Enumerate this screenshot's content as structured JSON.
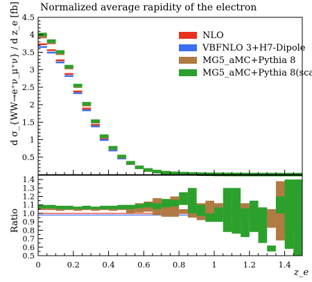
{
  "chart_data": {
    "title": "Normalized average rapidity of the electron",
    "x_label": "z_e",
    "y_label": "d σ_{WW→e⁺ν_μ⁺ν} / d z_e [fb]",
    "ratio_label": "Ratio",
    "x_ticks": [
      "0",
      "0.2",
      "0.4",
      "0.6",
      "0.8",
      "1",
      "1.2",
      "1.4"
    ],
    "main_y_ticks": [
      "0.5",
      "1",
      "1.5",
      "2",
      "2.5",
      "3",
      "3.5",
      "4",
      "4.5"
    ],
    "ratio_y_ticks": [
      "0.5",
      "0.6",
      "0.7",
      "0.8",
      "0.9",
      "1.0",
      "1.1",
      "1.2",
      "1.3",
      "1.4"
    ],
    "x_range": [
      0,
      1.5
    ],
    "main_y_range": [
      0,
      4.5
    ],
    "ratio_y_range": [
      0.5,
      1.45
    ],
    "bin_width": 0.05,
    "legend_position": "top-right",
    "series": [
      {
        "name": "NLO",
        "color": "#e8321e",
        "values": [
          3.73,
          3.56,
          3.27,
          2.88,
          2.38,
          1.89,
          1.42,
          1.02,
          0.71,
          0.47,
          0.31,
          0.19,
          0.12,
          0.08,
          0.05,
          0.035,
          0.025,
          0.018,
          0.012,
          0.008,
          0.006,
          0.004,
          0.003,
          0.002,
          0.0015,
          0.001,
          0.0008,
          0.0006,
          0.0004,
          0.0003
        ]
      },
      {
        "name": "VBFNLO 3+H7-Dipole",
        "color": "#3b6ef0",
        "values": [
          3.65,
          3.49,
          3.21,
          2.82,
          2.33,
          1.84,
          1.38,
          0.99,
          0.69,
          0.46,
          0.3,
          0.185,
          0.115,
          0.077,
          0.048,
          0.034,
          0.024,
          0.017,
          0.011,
          0.0075,
          0.0055,
          0.0037,
          0.0028,
          0.0019,
          0.0014,
          0.00095,
          0.00074,
          0.00055,
          0.00036,
          0.00026
        ]
      },
      {
        "name": "MG5_aMC+Pythia 8",
        "color": "#b07a43",
        "values": [
          3.95,
          3.78,
          3.47,
          3.06,
          2.53,
          2.0,
          1.51,
          1.08,
          0.76,
          0.51,
          0.33,
          0.205,
          0.13,
          0.086,
          0.054,
          0.037,
          0.026,
          0.019,
          0.013,
          0.0085,
          0.0062,
          0.0041,
          0.003,
          0.002,
          0.0015,
          0.001,
          0.0008,
          0.0006,
          0.0004,
          0.0003
        ]
      },
      {
        "name": "MG5_aMC+Pythia 8(scale)",
        "color": "#2ca02c",
        "values": [
          4.01,
          3.82,
          3.51,
          3.09,
          2.55,
          2.03,
          1.53,
          1.1,
          0.77,
          0.52,
          0.34,
          0.21,
          0.135,
          0.088,
          0.055,
          0.038,
          0.027,
          0.019,
          0.013,
          0.0088,
          0.0064,
          0.0042,
          0.0031,
          0.0021,
          0.0016,
          0.0011,
          0.00085,
          0.00062,
          0.00042,
          0.00031
        ]
      }
    ],
    "ratio_series": [
      {
        "name": "NLO",
        "color": "#e8321e",
        "low": [
          0.995,
          0.995,
          0.995,
          0.995,
          0.995,
          0.995,
          0.995,
          0.995,
          0.995,
          0.995,
          0.995,
          0.995,
          0.995,
          0.995,
          0.995,
          0.995,
          0.995,
          0.995,
          0.995,
          0.995,
          0.995,
          0.995,
          0.995,
          0.995,
          0.99,
          0.99,
          0.99,
          1.01,
          1.01,
          1.01
        ],
        "high": [
          1.005,
          1.005,
          1.005,
          1.005,
          1.005,
          1.005,
          1.005,
          1.005,
          1.005,
          1.005,
          1.005,
          1.005,
          1.005,
          1.005,
          1.005,
          1.005,
          1.005,
          1.005,
          1.005,
          1.005,
          1.005,
          1.005,
          1.005,
          1.005,
          1.01,
          1.01,
          1.01,
          1.06,
          1.06,
          1.06
        ]
      },
      {
        "name": "VBFNLO 3+H7-Dipole",
        "color": "#3b6ef0",
        "low": [
          0.975,
          0.975,
          0.975,
          0.975,
          0.975,
          0.975,
          0.975,
          0.975,
          0.975,
          0.975,
          0.975,
          0.975,
          0.975,
          0.975,
          0.975,
          0.975,
          0.975,
          0.97,
          0.96,
          0.955,
          0.95,
          0.955,
          0.94,
          0.94,
          0.93,
          0.9,
          0.9,
          0.94,
          0.96,
          0.81
        ],
        "high": [
          0.985,
          0.985,
          0.985,
          0.985,
          0.985,
          0.985,
          0.985,
          0.985,
          0.985,
          0.985,
          0.985,
          0.985,
          0.985,
          0.985,
          0.985,
          0.985,
          0.985,
          0.98,
          0.97,
          0.965,
          0.96,
          0.965,
          0.95,
          0.95,
          0.94,
          0.91,
          0.92,
          0.96,
          1.02,
          0.88
        ]
      },
      {
        "name": "MG5_aMC+Pythia 8",
        "color": "#b07a43",
        "low": [
          1.04,
          1.04,
          1.03,
          1.04,
          1.03,
          1.04,
          1.03,
          1.04,
          1.03,
          1.04,
          1.0,
          1.01,
          1.02,
          0.98,
          0.96,
          0.96,
          1.0,
          0.95,
          0.92,
          0.96,
          0.96,
          1.0,
          0.93,
          0.95,
          0.95,
          0.95,
          0.83,
          0.68,
          0.75,
          0.5
        ],
        "high": [
          1.07,
          1.07,
          1.07,
          1.07,
          1.07,
          1.07,
          1.07,
          1.07,
          1.07,
          1.09,
          1.1,
          1.12,
          1.14,
          1.18,
          1.12,
          1.2,
          1.05,
          1.1,
          1.12,
          1.15,
          1.12,
          1.05,
          1.03,
          1.12,
          1.1,
          1.07,
          1.05,
          1.38,
          1.39,
          1.4
        ]
      },
      {
        "name": "MG5_aMC+Pythia 8(scale)",
        "color": "#2ca02c",
        "low": [
          1.06,
          1.06,
          1.05,
          1.05,
          1.05,
          1.05,
          1.05,
          1.05,
          1.05,
          1.05,
          1.05,
          1.06,
          1.07,
          1.05,
          1.07,
          1.08,
          1.1,
          1.0,
          0.97,
          0.9,
          0.9,
          0.78,
          0.76,
          0.72,
          0.78,
          0.65,
          0.55,
          1.0,
          0.58,
          0.5
        ],
        "high": [
          1.1,
          1.1,
          1.09,
          1.09,
          1.08,
          1.09,
          1.08,
          1.09,
          1.09,
          1.1,
          1.1,
          1.11,
          1.13,
          1.12,
          1.17,
          1.16,
          1.25,
          1.3,
          1.1,
          1.0,
          1.07,
          1.3,
          1.3,
          1.06,
          1.15,
          1.07,
          0.62,
          1.2,
          1.4,
          1.4
        ]
      }
    ]
  }
}
